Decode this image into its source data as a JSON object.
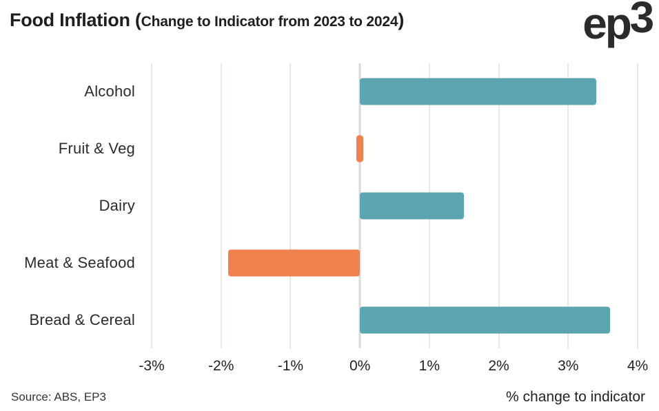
{
  "header": {
    "title_main": "Food Inflation (",
    "title_sub": "Change to Indicator from 2023 to 2024",
    "title_close": ")",
    "logo_ep": "ep",
    "logo_3": "3"
  },
  "footer": {
    "source": "Source: ABS, EP3",
    "xaxis_title": "% change to indicator"
  },
  "colors": {
    "positive_bar": "#5ba6ae",
    "negative_bar": "#f0814d",
    "gridline": "#ece8dc",
    "zero_gridline": "#d8d8d6",
    "text": "#222222"
  },
  "chart_data": {
    "type": "bar",
    "orientation": "horizontal",
    "title": "Food Inflation (Change to Indicator from 2023 to 2024)",
    "xlabel": "% change to indicator",
    "categories": [
      "Alcohol",
      "Fruit & Veg",
      "Dairy",
      "Meat & Seafood",
      "Bread & Cereal"
    ],
    "values": [
      3.4,
      -0.05,
      1.5,
      -1.9,
      3.6
    ],
    "bar_colors": [
      "#5ba6ae",
      "#f0814d",
      "#5ba6ae",
      "#f0814d",
      "#5ba6ae"
    ],
    "xlim": [
      -3,
      4
    ],
    "xticks": [
      -3,
      -2,
      -1,
      0,
      1,
      2,
      3,
      4
    ],
    "xtick_labels": [
      "-3%",
      "-2%",
      "-1%",
      "0%",
      "1%",
      "2%",
      "3%",
      "4%"
    ],
    "grid": true,
    "legend": false
  }
}
